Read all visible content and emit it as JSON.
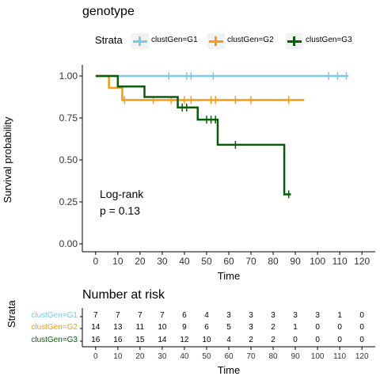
{
  "title": "genotype",
  "legend": {
    "label": "Strata",
    "items": [
      {
        "name": "clustGen=G1",
        "color": "#7ec8e8"
      },
      {
        "name": "clustGen=G2",
        "color": "#f39c12"
      },
      {
        "name": "clustGen=G3",
        "color": "#0a5c0a"
      }
    ]
  },
  "chart_data": {
    "type": "line",
    "subtype": "kaplan-meier step",
    "xlabel": "Time",
    "ylabel": "Survival probability",
    "xlim": [
      0,
      120
    ],
    "ylim": [
      0,
      1
    ],
    "x_ticks": [
      0,
      10,
      20,
      30,
      40,
      50,
      60,
      70,
      80,
      90,
      100,
      110,
      120
    ],
    "y_ticks": [
      "0.00",
      "0.25",
      "0.50",
      "0.75",
      "1.00"
    ],
    "grid": false,
    "annotation": [
      "Log-rank",
      "p = 0.13"
    ],
    "series": [
      {
        "name": "clustGen=G1",
        "color": "#7ec8e8",
        "steps": [
          [
            0,
            1.0
          ],
          [
            114,
            1.0
          ]
        ],
        "censor": [
          [
            33,
            1.0
          ],
          [
            41,
            1.0
          ],
          [
            43,
            1.0
          ],
          [
            53,
            1.0
          ],
          [
            105,
            1.0
          ],
          [
            109,
            1.0
          ],
          [
            113,
            1.0
          ]
        ]
      },
      {
        "name": "clustGen=G2",
        "color": "#f39c12",
        "steps": [
          [
            0,
            1.0
          ],
          [
            6,
            0.929
          ],
          [
            12,
            0.857
          ],
          [
            94,
            0.857
          ]
        ],
        "censor": [
          [
            13,
            0.857
          ],
          [
            26,
            0.857
          ],
          [
            34,
            0.857
          ],
          [
            40,
            0.857
          ],
          [
            43,
            0.857
          ],
          [
            52,
            0.857
          ],
          [
            54,
            0.857
          ],
          [
            63,
            0.857
          ],
          [
            70,
            0.857
          ],
          [
            87,
            0.857
          ]
        ]
      },
      {
        "name": "clustGen=G3",
        "color": "#0a5c0a",
        "steps": [
          [
            0,
            1.0
          ],
          [
            10,
            0.9375
          ],
          [
            22,
            0.875
          ],
          [
            37,
            0.8125
          ],
          [
            46,
            0.74
          ],
          [
            55,
            0.59
          ],
          [
            85,
            0.295
          ],
          [
            88,
            0.295
          ]
        ],
        "censor": [
          [
            39,
            0.8125
          ],
          [
            41,
            0.8125
          ],
          [
            50,
            0.74
          ],
          [
            52,
            0.74
          ],
          [
            54,
            0.74
          ],
          [
            63,
            0.59
          ],
          [
            87,
            0.295
          ]
        ]
      }
    ]
  },
  "risk_table": {
    "title": "Number at risk",
    "strata_label": "Strata",
    "xlabel": "Time",
    "x_ticks": [
      0,
      10,
      20,
      30,
      40,
      50,
      60,
      70,
      80,
      90,
      100,
      110,
      120
    ],
    "rows": [
      {
        "name": "clustGen=G1",
        "color": "#7ec8e8",
        "values": [
          7,
          7,
          7,
          7,
          6,
          4,
          3,
          3,
          3,
          3,
          3,
          1,
          0
        ]
      },
      {
        "name": "clustGen=G2",
        "color": "#f39c12",
        "values": [
          14,
          13,
          11,
          10,
          9,
          6,
          5,
          3,
          2,
          1,
          0,
          0,
          0
        ]
      },
      {
        "name": "clustGen=G3",
        "color": "#0a5c0a",
        "values": [
          16,
          16,
          15,
          14,
          12,
          10,
          4,
          2,
          2,
          0,
          0,
          0,
          0
        ]
      }
    ]
  }
}
